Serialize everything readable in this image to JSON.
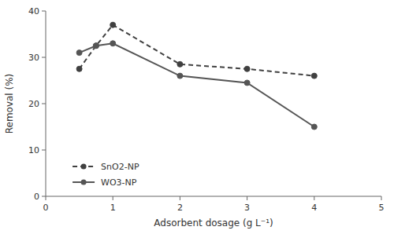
{
  "chart_data": {
    "type": "line",
    "xlabel": "Adsorbent dosage (g L⁻¹)",
    "ylabel": "Removal (%)",
    "x": [
      0.5,
      0.75,
      1.0,
      2.0,
      3.0,
      4.0
    ],
    "series": [
      {
        "name": "SnO2-NP",
        "color": "#404040",
        "values": [
          27.5,
          32.5,
          37.0,
          28.5,
          27.5,
          26.0
        ],
        "line_style": "dashed",
        "marker": "circle"
      },
      {
        "name": "WO3-NP",
        "color": "#555555",
        "values": [
          31.0,
          32.5,
          33.0,
          26.0,
          24.5,
          15.0
        ],
        "line_style": "solid",
        "marker": "circle"
      }
    ],
    "xlim": [
      0,
      5
    ],
    "ylim": [
      0,
      40
    ],
    "xticks": [
      0,
      1,
      2,
      3,
      4,
      5
    ],
    "yticks": [
      0,
      10,
      20,
      30,
      40
    ],
    "grid": false,
    "legend": "lower left"
  }
}
